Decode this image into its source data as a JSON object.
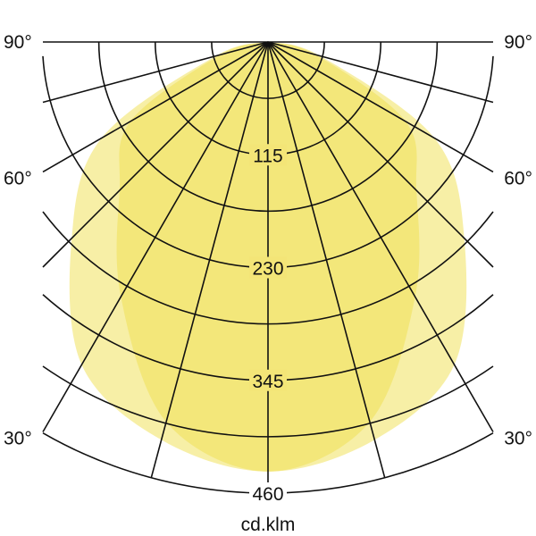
{
  "chart_data": {
    "type": "polar",
    "unit_label": "cd.klm",
    "radial_ticks": [
      115,
      230,
      345,
      460
    ],
    "radial_max": 460,
    "radial_minor_step": 57.5,
    "angle_step_deg": 15,
    "angle_labels": [
      "90°",
      "60°",
      "30°"
    ],
    "angle_label_values": [
      90,
      60,
      30
    ],
    "fill_color": "#f0df4e",
    "grid_color": "#111111",
    "series": [
      {
        "angles": [
          0,
          15,
          30,
          45,
          60,
          75,
          90
        ],
        "values": [
          438,
          420,
          380,
          283,
          196,
          55,
          0
        ]
      },
      {
        "angles": [
          0,
          15,
          30,
          45,
          60,
          75,
          90
        ],
        "values": [
          438,
          401,
          300,
          214,
          162,
          50,
          0
        ]
      }
    ]
  }
}
